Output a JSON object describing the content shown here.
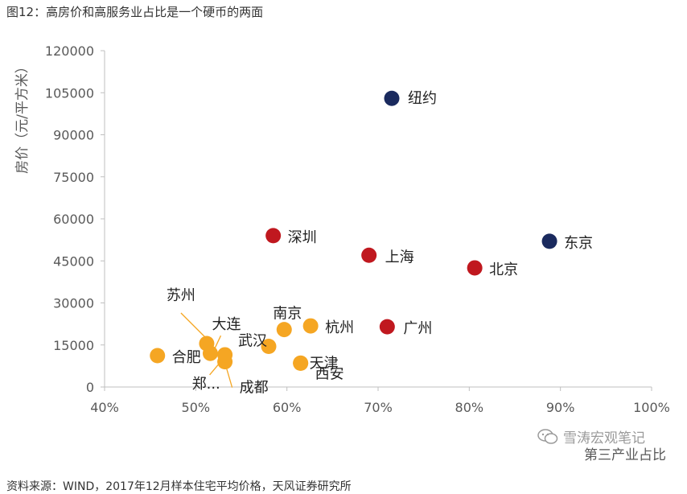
{
  "figure_title": "图12：高房价和高服务业占比是一个硬币的两面",
  "source_note": "资料来源：WIND，2017年12月样本住宅平均价格，天风证券研究所",
  "watermark": "雪涛宏观笔记",
  "chart_data": {
    "type": "scatter",
    "xlabel": "第三产业占比",
    "ylabel": "房价（元/平方米）",
    "xlim": [
      40,
      100
    ],
    "ylim": [
      0,
      120000
    ],
    "x_ticks": [
      "40%",
      "50%",
      "60%",
      "70%",
      "80%",
      "90%",
      "100%"
    ],
    "y_ticks": [
      "0",
      "15000",
      "30000",
      "45000",
      "60000",
      "75000",
      "90000",
      "105000",
      "120000"
    ],
    "grid": false,
    "colors": {
      "international": "#1a2a5e",
      "tier1": "#c0181f",
      "tier2": "#f5a623"
    },
    "points": [
      {
        "name": "纽约",
        "x": 71.5,
        "y": 103000,
        "group": "international"
      },
      {
        "name": "东京",
        "x": 88.8,
        "y": 52000,
        "group": "international"
      },
      {
        "name": "深圳",
        "x": 58.5,
        "y": 54000,
        "group": "tier1"
      },
      {
        "name": "上海",
        "x": 69.0,
        "y": 47000,
        "group": "tier1"
      },
      {
        "name": "北京",
        "x": 80.6,
        "y": 42500,
        "group": "tier1"
      },
      {
        "name": "广州",
        "x": 71.0,
        "y": 21500,
        "group": "tier1"
      },
      {
        "name": "南京",
        "x": 59.7,
        "y": 20500,
        "group": "tier2"
      },
      {
        "name": "杭州",
        "x": 62.6,
        "y": 21800,
        "group": "tier2"
      },
      {
        "name": "武汉",
        "x": 58.0,
        "y": 14500,
        "group": "tier2"
      },
      {
        "name": "天津",
        "x": 61.5,
        "y": 8500,
        "group": "tier2"
      },
      {
        "name": "西安",
        "x": 61.5,
        "y": 8500,
        "group": "tier2"
      },
      {
        "name": "合肥",
        "x": 45.8,
        "y": 11200,
        "group": "tier2"
      },
      {
        "name": "苏州",
        "x": 51.2,
        "y": 15500,
        "group": "tier2"
      },
      {
        "name": "大连",
        "x": 51.6,
        "y": 12000,
        "group": "tier2"
      },
      {
        "name": "成都",
        "x": 53.2,
        "y": 9000,
        "group": "tier2"
      },
      {
        "name": "郑...",
        "x": 53.2,
        "y": 11500,
        "group": "tier2"
      }
    ]
  }
}
